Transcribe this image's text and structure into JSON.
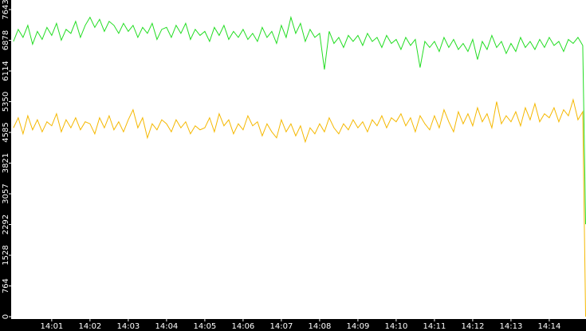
{
  "chart_data": {
    "type": "line",
    "x": [
      840,
      840.125,
      840.25,
      840.375,
      840.5,
      840.625,
      840.75,
      840.875,
      841,
      841.125,
      841.25,
      841.375,
      841.5,
      841.625,
      841.75,
      841.875,
      842,
      842.125,
      842.25,
      842.375,
      842.5,
      842.625,
      842.75,
      842.875,
      843,
      843.125,
      843.25,
      843.375,
      843.5,
      843.625,
      843.75,
      843.875,
      844,
      844.125,
      844.25,
      844.375,
      844.5,
      844.625,
      844.75,
      844.875,
      845,
      845.125,
      845.25,
      845.375,
      845.5,
      845.625,
      845.75,
      845.875,
      846,
      846.125,
      846.25,
      846.375,
      846.5,
      846.625,
      846.75,
      846.875,
      847,
      847.125,
      847.25,
      847.375,
      847.5,
      847.625,
      847.75,
      847.875,
      848,
      848.125,
      848.25,
      848.375,
      848.5,
      848.625,
      848.75,
      848.875,
      849,
      849.125,
      849.25,
      849.375,
      849.5,
      849.625,
      849.75,
      849.875,
      850,
      850.125,
      850.25,
      850.375,
      850.5,
      850.625,
      850.75,
      850.875,
      851,
      851.125,
      851.25,
      851.375,
      851.5,
      851.625,
      851.75,
      851.875,
      852,
      852.125,
      852.25,
      852.375,
      852.5,
      852.625,
      852.75,
      852.875,
      853,
      853.125,
      853.25,
      853.375,
      853.5,
      853.625,
      853.75,
      853.875,
      854,
      854.125,
      854.25,
      854.375,
      854.5,
      854.625,
      854.75,
      854.875,
      854.95
    ],
    "series": [
      {
        "color": "#22dd22",
        "values": [
          6850,
          7150,
          6950,
          7250,
          6780,
          7100,
          6900,
          7200,
          7000,
          7300,
          6880,
          7150,
          7050,
          7350,
          6950,
          7250,
          7450,
          7200,
          7400,
          7100,
          7350,
          7250,
          7050,
          7300,
          7100,
          7250,
          6950,
          7200,
          7050,
          7300,
          6900,
          7150,
          7200,
          6950,
          7250,
          7050,
          7300,
          6900,
          7150,
          7000,
          7100,
          6850,
          7200,
          7000,
          7250,
          6900,
          7100,
          6950,
          7150,
          6900,
          7050,
          6850,
          7200,
          6950,
          7100,
          6800,
          7250,
          6950,
          7450,
          7050,
          7300,
          6850,
          7150,
          6950,
          7050,
          6150,
          7100,
          6800,
          6950,
          6700,
          7000,
          6850,
          7000,
          6750,
          7050,
          6850,
          6950,
          6700,
          7000,
          6800,
          6900,
          6650,
          6950,
          6750,
          6900,
          6200,
          6850,
          6700,
          6850,
          6600,
          6950,
          6700,
          6900,
          6650,
          6800,
          6600,
          6900,
          6400,
          6850,
          6650,
          7000,
          6700,
          6850,
          6550,
          6800,
          6600,
          6950,
          6700,
          6850,
          6650,
          6900,
          6700,
          6950,
          6750,
          6850,
          6600,
          6900,
          6800,
          6950,
          6750,
          2300
        ]
      },
      {
        "color": "#f5b800",
        "values": [
          4700,
          4950,
          4550,
          5000,
          4650,
          4900,
          4600,
          4850,
          4750,
          5050,
          4600,
          4900,
          4700,
          4950,
          4650,
          4850,
          4800,
          4550,
          4950,
          4700,
          5000,
          4650,
          4850,
          4600,
          4900,
          5150,
          4700,
          4950,
          4450,
          4800,
          4650,
          4900,
          4800,
          4600,
          4900,
          4700,
          4850,
          4550,
          4750,
          4650,
          4700,
          4950,
          4600,
          5050,
          4750,
          4900,
          4550,
          4800,
          4650,
          5000,
          4750,
          4850,
          4500,
          4800,
          4600,
          4450,
          4900,
          4600,
          4800,
          4500,
          4750,
          4350,
          4700,
          4550,
          4800,
          4600,
          4950,
          4700,
          4550,
          4800,
          4650,
          4900,
          4700,
          4850,
          4600,
          4900,
          4750,
          5000,
          4700,
          4950,
          4850,
          5050,
          4750,
          4950,
          4600,
          5000,
          4800,
          4650,
          5000,
          4700,
          5150,
          4850,
          4600,
          5100,
          4800,
          5050,
          4750,
          5200,
          4850,
          5050,
          4700,
          5350,
          4800,
          5000,
          4850,
          5100,
          4750,
          5200,
          4900,
          5300,
          4850,
          5050,
          4950,
          5200,
          4850,
          5150,
          5000,
          5400,
          4900,
          5100,
          0
        ]
      }
    ],
    "xlim": [
      839.94,
      854.96
    ],
    "xticks": [
      {
        "value": 841,
        "label": "14:01"
      },
      {
        "value": 842,
        "label": "14:02"
      },
      {
        "value": 843,
        "label": "14:03"
      },
      {
        "value": 844,
        "label": "14:04"
      },
      {
        "value": 845,
        "label": "14:05"
      },
      {
        "value": 846,
        "label": "14:06"
      },
      {
        "value": 847,
        "label": "14:07"
      },
      {
        "value": 848,
        "label": "14:08"
      },
      {
        "value": 849,
        "label": "14:09"
      },
      {
        "value": 850,
        "label": "14:10"
      },
      {
        "value": 851,
        "label": "14:11"
      },
      {
        "value": 852,
        "label": "14:12"
      },
      {
        "value": 853,
        "label": "14:13"
      },
      {
        "value": 854,
        "label": "14:14"
      }
    ],
    "ylim": [
      0,
      7643
    ],
    "yticks": [
      0,
      764,
      1528,
      2292,
      3057,
      3821,
      4585,
      5350,
      6114,
      6878,
      7643
    ]
  }
}
